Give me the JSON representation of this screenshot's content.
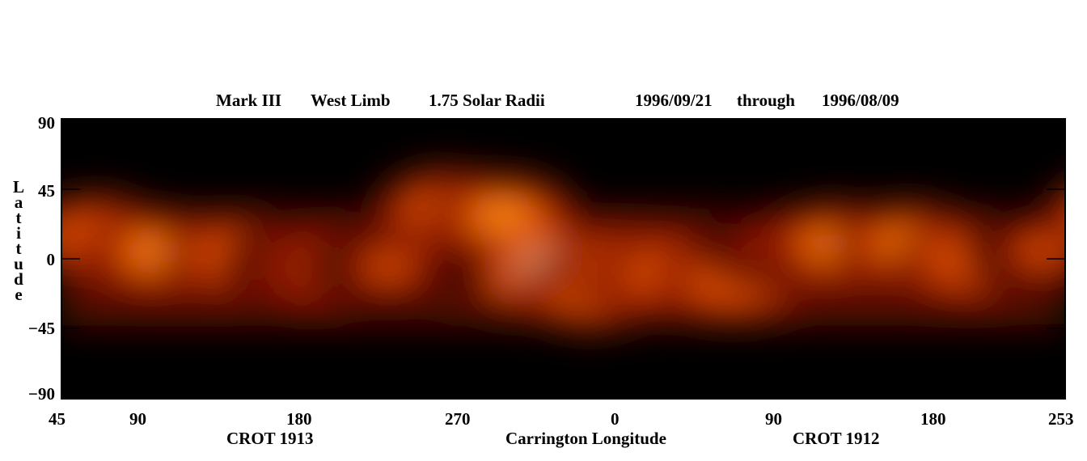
{
  "chart_data": {
    "type": "heatmap",
    "title_parts": [
      "Mark III",
      "West Limb",
      "1.75 Solar Radii",
      "1996/09/21",
      "through",
      "1996/08/09"
    ],
    "xlabel": "Carrington Longitude",
    "ylabel": "Latitude",
    "crot_labels": [
      "CROT 1913",
      "CROT 1912"
    ],
    "x_tick_labels": [
      "45",
      "90",
      "180",
      "270",
      "0",
      "90",
      "180",
      "253"
    ],
    "y_tick_labels": [
      "90",
      "45",
      "0",
      "−45",
      "−90"
    ],
    "ylim": [
      -90,
      90
    ],
    "colormap": [
      "#000000",
      "#3a0000",
      "#8a1200",
      "#d84a00",
      "#ff8c1a",
      "#ffd9a0",
      "#ffffff"
    ],
    "grid": false,
    "blobs": [
      {
        "lon_deg": 20,
        "lat": 15,
        "intensity": 0.55
      },
      {
        "lon_deg": 55,
        "lat": 5,
        "intensity": 0.6
      },
      {
        "lon_deg": 100,
        "lat": 3,
        "intensity": 0.55
      },
      {
        "lon_deg": 135,
        "lat": -2,
        "intensity": 0.45
      },
      {
        "lon_deg": 150,
        "lat": -5,
        "intensity": 0.5
      },
      {
        "lon_deg": 185,
        "lat": -5,
        "intensity": 0.45
      },
      {
        "lon_deg": 220,
        "lat": 32,
        "intensity": 0.65
      },
      {
        "lon_deg": 250,
        "lat": 28,
        "intensity": 0.7
      },
      {
        "lon_deg": 285,
        "lat": -10,
        "intensity": 1.0
      },
      {
        "lon_deg": 300,
        "lat": -20,
        "intensity": 0.7
      },
      {
        "lon_deg": 320,
        "lat": -5,
        "intensity": 0.65
      },
      {
        "lon_deg": 345,
        "lat": -10,
        "intensity": 0.55
      },
      {
        "lon_deg": 380,
        "lat": -15,
        "intensity": 0.55
      },
      {
        "lon_deg": 405,
        "lat": 8,
        "intensity": 0.4
      },
      {
        "lon_deg": 440,
        "lat": 10,
        "intensity": 0.6
      },
      {
        "lon_deg": 480,
        "lat": 10,
        "intensity": 0.6
      },
      {
        "lon_deg": 515,
        "lat": 0,
        "intensity": 0.55
      },
      {
        "lon_deg": 555,
        "lat": 5,
        "intensity": 0.45
      },
      {
        "lon_deg": 600,
        "lat": 28,
        "intensity": 0.6
      },
      {
        "lon_deg": 640,
        "lat": 28,
        "intensity": 0.65
      },
      {
        "lon_deg": 620,
        "lat": 0,
        "intensity": 0.45
      }
    ]
  }
}
